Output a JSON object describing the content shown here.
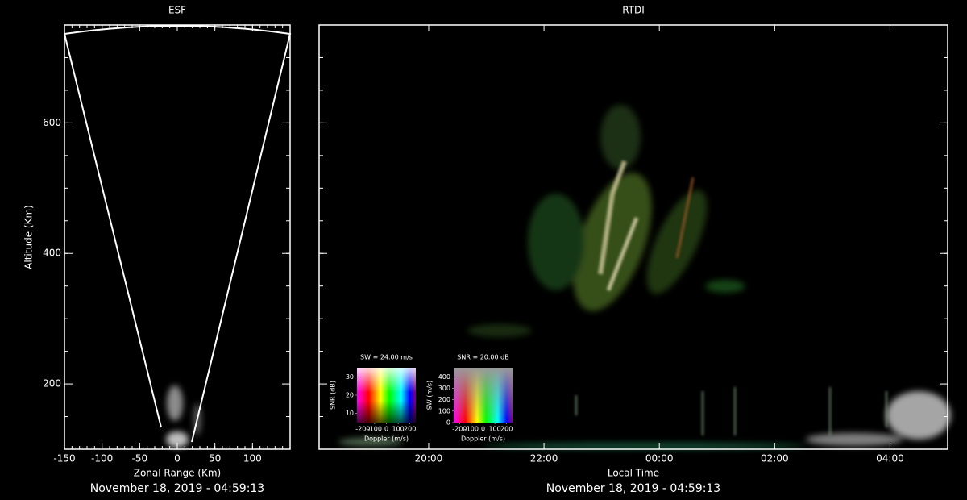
{
  "chart_data": [
    {
      "type": "esf",
      "title": "ESF",
      "x_label": "Zonal Range (Km)",
      "y_label": "Altitude (Km)",
      "xlim": [
        -150,
        150
      ],
      "ylim": [
        100,
        750
      ],
      "xticks": [
        -150,
        -100,
        -50,
        0,
        50,
        100
      ],
      "yticks": [
        200,
        400,
        600
      ],
      "caption": "November 18, 2019 - 04:59:13"
    },
    {
      "type": "rtdi",
      "title": "RTDI",
      "x_label": "Local Time",
      "xlim": [
        18.1,
        29.0
      ],
      "xticks": [
        {
          "value": 20,
          "label": "20:00"
        },
        {
          "value": 22,
          "label": "22:00"
        },
        {
          "value": 24,
          "label": "00:00"
        },
        {
          "value": 26,
          "label": "02:00"
        },
        {
          "value": 28,
          "label": "04:00"
        }
      ],
      "caption": "November 18, 2019 - 04:59:13"
    },
    {
      "type": "colorkey",
      "title": "SW = 24.00 m/s",
      "x_label": "Doppler (m/s)",
      "y_label": "SNR (dB)",
      "xlim": [
        -250,
        250
      ],
      "ylim": [
        5,
        35
      ],
      "xticks": [
        -200,
        -100,
        0,
        100,
        200
      ],
      "yticks": [
        10,
        20,
        30
      ]
    },
    {
      "type": "colorkey",
      "title": "SNR = 20.00 dB",
      "x_label": "Doppler (m/s)",
      "y_label": "SW (m/s)",
      "xlim": [
        -250,
        250
      ],
      "ylim": [
        0,
        480
      ],
      "xticks": [
        -200,
        -100,
        0,
        100,
        200
      ],
      "yticks": [
        0,
        100,
        200,
        300,
        400
      ]
    }
  ]
}
